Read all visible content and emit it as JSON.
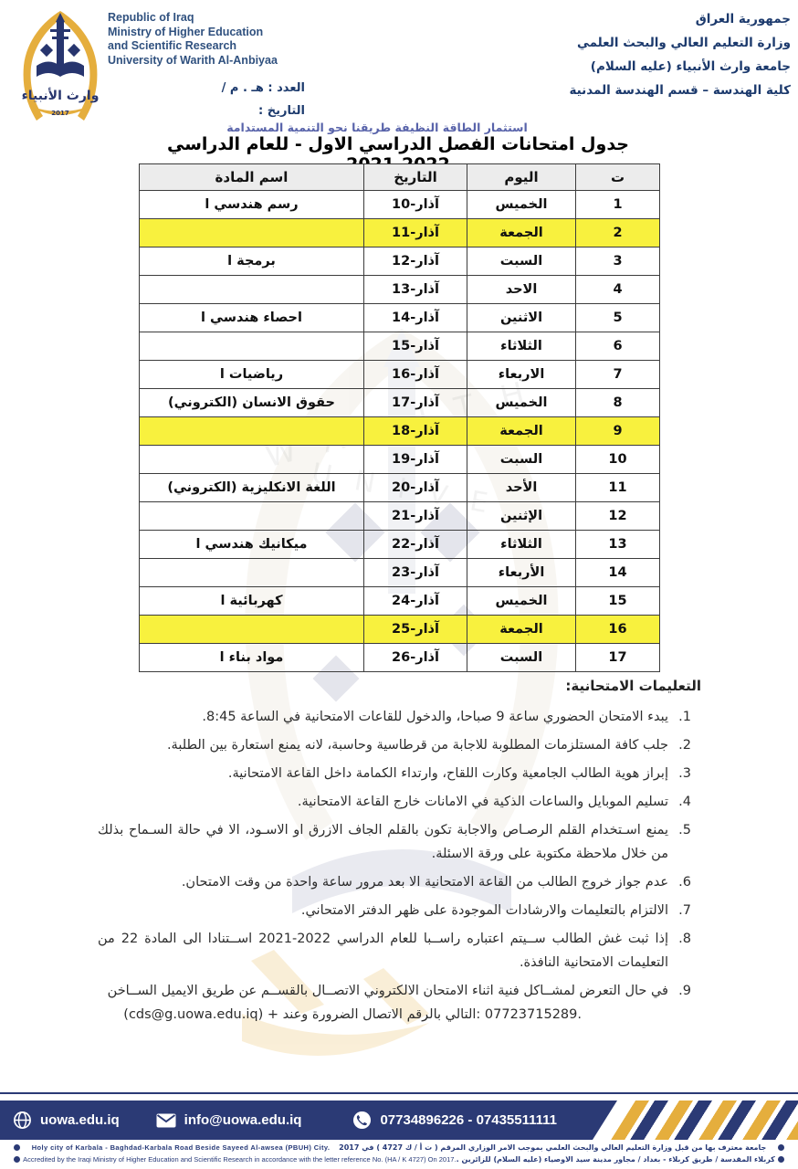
{
  "header": {
    "english_lines": [
      "Republic of Iraq",
      "Ministry of Higher Education",
      "and Scientific Research",
      "University of Warith Al-Anbiyaa"
    ],
    "arabic_lines": [
      "جمهورية العراق",
      "وزارة التعليم العالي والبحث العلمي",
      "جامعة وارث الأنبياء (عليه السلام)",
      "كلية الهندسة – قسم الهندسة المدنية"
    ],
    "number_label": "العدد : هـ . م /",
    "date_label": "التاريخ :",
    "tagline": "استثمار الطاقة النظيفة طريقنا نحو التنمية المستدامة"
  },
  "logo": {
    "calligraphy": "وارث الأنبياء",
    "year": "2017"
  },
  "title": "جدول امتحانات الفصل الدراسي الاول - للعام الدراسي 2022-2021",
  "table": {
    "headers": {
      "serial": "ت",
      "day": "اليوم",
      "date": "التاريخ",
      "subject": "اسم المادة"
    },
    "rows": [
      {
        "serial": "1",
        "day": "الخميس",
        "date": "آذار-10",
        "subject": "رسم هندسي ا",
        "highlight": false
      },
      {
        "serial": "2",
        "day": "الجمعة",
        "date": "آذار-11",
        "subject": "",
        "highlight": true
      },
      {
        "serial": "3",
        "day": "السبت",
        "date": "آذار-12",
        "subject": "برمجة ا",
        "highlight": false
      },
      {
        "serial": "4",
        "day": "الاحد",
        "date": "آذار-13",
        "subject": "",
        "highlight": false
      },
      {
        "serial": "5",
        "day": "الاثنين",
        "date": "آذار-14",
        "subject": "احصاء هندسي ا",
        "highlight": false
      },
      {
        "serial": "6",
        "day": "الثلاثاء",
        "date": "آذار-15",
        "subject": "",
        "highlight": false
      },
      {
        "serial": "7",
        "day": "الاربعاء",
        "date": "آذار-16",
        "subject": "رياضيات ا",
        "highlight": false
      },
      {
        "serial": "8",
        "day": "الخميس",
        "date": "آذار-17",
        "subject": "حقوق الانسان (الكتروني)",
        "highlight": false
      },
      {
        "serial": "9",
        "day": "الجمعة",
        "date": "آذار-18",
        "subject": "",
        "highlight": true
      },
      {
        "serial": "10",
        "day": "السبت",
        "date": "آذار-19",
        "subject": "",
        "highlight": false
      },
      {
        "serial": "11",
        "day": "الأحد",
        "date": "آذار-20",
        "subject": "اللغة الانكليزية (الكتروني)",
        "highlight": false
      },
      {
        "serial": "12",
        "day": "الإثنين",
        "date": "آذار-21",
        "subject": "",
        "highlight": false
      },
      {
        "serial": "13",
        "day": "الثلاثاء",
        "date": "آذار-22",
        "subject": "ميكانيك هندسي ا",
        "highlight": false
      },
      {
        "serial": "14",
        "day": "الأربعاء",
        "date": "آذار-23",
        "subject": "",
        "highlight": false
      },
      {
        "serial": "15",
        "day": "الخميس",
        "date": "آذار-24",
        "subject": "كهربائية ا",
        "highlight": false
      },
      {
        "serial": "16",
        "day": "الجمعة",
        "date": "آذار-25",
        "subject": "",
        "highlight": true
      },
      {
        "serial": "17",
        "day": "السبت",
        "date": "آذار-26",
        "subject": "مواد بناء ا",
        "highlight": false
      }
    ]
  },
  "instructions": {
    "heading": "التعليمات الامتحانية:",
    "items": [
      {
        "num": "1.",
        "text": "يبدء الامتحان الحضوري ساعة 9 صباحا، والدخول للقاعات الامتحانية في الساعة 8:45."
      },
      {
        "num": "2.",
        "text": "جلب كافة المستلزمات المطلوبة للاجابة من قرطاسية وحاسبة، لانه يمنع استعارة بين الطلبة."
      },
      {
        "num": "3.",
        "text": "إبراز هوية الطالب الجامعية وكارت اللقاح، وارتداء الكمامة داخل القاعة الامتحانية."
      },
      {
        "num": "4.",
        "text": "تسليم الموبايل والساعات الذكية في الامانات خارج القاعة الامتحانية."
      },
      {
        "num": "5.",
        "text": "يمنع اسـتخدام القلم الرصـاص والاجابة تكون بالقلم الجاف الازرق او الاسـود، الا في حالة السـماح بذلك من خلال ملاحظة مكتوبة على ورقة الاسئلة."
      },
      {
        "num": "6.",
        "text": "عدم جواز خروج الطالب من القاعة الامتحانية الا بعد مرور ساعة واحدة من وقت الامتحان."
      },
      {
        "num": "7.",
        "text": "الالتزام بالتعليمات والارشادات الموجودة على ظهر الدفتر الامتحاني."
      },
      {
        "num": "8.",
        "text": "إذا ثبت غش الطالب ســيتم اعتباره راســبا للعام الدراسي 2022-2021 اســتنادا الى المادة 22 من التعليمات الامتحانية النافذة."
      },
      {
        "num": "9.",
        "text": "في حال التعرض لمشــاكل فنية اثناء الامتحان الالكتروني الاتصــال بالقســم عن طريق الايميل الســاخن",
        "text2_ltr": "(cds@g.uowa.edu.iq) + وعند‎ الضرورة‎ الاتصال‎ بالرقم‎ التالي‎: 07723715289."
      }
    ]
  },
  "footer": {
    "website": "uowa.edu.iq",
    "email": "info@uowa.edu.iq",
    "phones": "07734896226 - 07435511111",
    "line1_en": "Holy city  of  Karbala - Baghdad-Karbala Road Beside Sayeed Al-awsea (PBUH) City.",
    "line1_ar": "جامعة معترف بها من قبل وزارة التعليم العالي والبحث العلمي بموجب الامر الوزاري المرقم ( ت أ / ك 4727 ) في 2017",
    "line2_en": "Accredited by the Iraqi Ministry of Higher Education and Scientific Research in accordance with the letter reference No. (HA / K 4727) On 2017.",
    "line2_ar": "كربلاء المقدسة / طريق كربلاء - بغداد / مجاور مدينة سيد الاوصياء (عليه السلام) للزائرين ."
  },
  "colors": {
    "navy": "#2b3a75",
    "gold": "#e5ae3d",
    "highlight_yellow": "#f8f13e",
    "tagline_blue": "#5863aa"
  }
}
